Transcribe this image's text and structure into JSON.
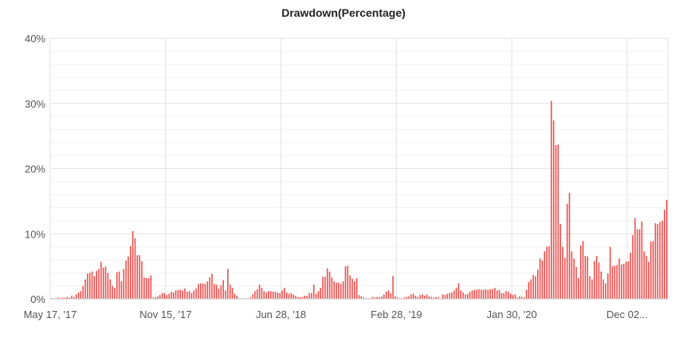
{
  "chart_data": {
    "type": "bar",
    "title": "Drawdown(Percentage)",
    "xlabel": "",
    "ylabel": "",
    "ylim": [
      0,
      40
    ],
    "y_ticks": [
      {
        "value": 0,
        "label": "0%"
      },
      {
        "value": 10,
        "label": "10%"
      },
      {
        "value": 20,
        "label": "20%"
      },
      {
        "value": 30,
        "label": "30%"
      },
      {
        "value": 40,
        "label": "40%"
      }
    ],
    "x_ticks": [
      {
        "index": 0,
        "label": "May 17, '17"
      },
      {
        "index": 51,
        "label": "Nov 15, '17"
      },
      {
        "index": 102,
        "label": "Jun 28, '18"
      },
      {
        "index": 153,
        "label": "Feb 28, '19"
      },
      {
        "index": 204,
        "label": "Jan 30, '20"
      },
      {
        "index": 255,
        "label": "Dec 02..."
      }
    ],
    "grid": true,
    "bar_color": "#ef4b4b",
    "values": [
      0.1,
      0.1,
      0.1,
      0.2,
      0.1,
      0.2,
      0.2,
      0.3,
      0.2,
      0.5,
      0.3,
      0.7,
      1.0,
      1.2,
      2.0,
      3.0,
      3.9,
      4.0,
      4.2,
      3.5,
      4.3,
      4.6,
      5.7,
      4.8,
      5.0,
      4.0,
      3.0,
      2.0,
      1.7,
      4.1,
      4.2,
      2.7,
      4.6,
      5.9,
      6.5,
      8.1,
      10.4,
      9.3,
      6.7,
      6.7,
      5.8,
      3.3,
      3.2,
      3.2,
      3.6,
      0.2,
      0.3,
      0.4,
      0.6,
      0.9,
      0.9,
      0.6,
      0.8,
      1.1,
      1.0,
      1.3,
      1.4,
      1.4,
      1.3,
      1.6,
      1.1,
      1.2,
      0.9,
      1.3,
      1.6,
      2.3,
      2.4,
      2.4,
      2.3,
      2.7,
      3.3,
      3.9,
      2.3,
      2.2,
      1.6,
      2.1,
      2.9,
      1.3,
      4.6,
      2.2,
      1.7,
      0.8,
      0.5,
      0.1,
      0.1,
      0.1,
      0.1,
      0.1,
      0.2,
      0.7,
      1.2,
      1.5,
      2.2,
      1.7,
      1.2,
      1.0,
      1.2,
      1.2,
      1.1,
      1.1,
      1.0,
      0.9,
      1.3,
      1.7,
      1.0,
      0.8,
      0.9,
      0.7,
      0.5,
      0.3,
      0.3,
      0.3,
      0.5,
      0.5,
      0.9,
      0.9,
      2.2,
      0.8,
      1.2,
      1.7,
      3.4,
      3.4,
      4.7,
      4.2,
      3.3,
      2.7,
      2.5,
      2.5,
      2.3,
      2.7,
      5.0,
      5.1,
      3.6,
      3.1,
      2.7,
      3.2,
      0.6,
      0.4,
      0.2,
      0.1,
      0.1,
      0.1,
      0.3,
      0.2,
      0.3,
      0.3,
      0.4,
      0.7,
      1.1,
      1.3,
      0.9,
      3.5,
      0.4,
      0.2,
      0.1,
      0.1,
      0.2,
      0.3,
      0.4,
      0.7,
      0.8,
      0.5,
      0.3,
      0.6,
      0.7,
      0.5,
      0.7,
      0.4,
      0.3,
      0.2,
      0.3,
      0.3,
      0.1,
      0.7,
      0.6,
      0.8,
      0.9,
      1.0,
      1.3,
      1.7,
      2.4,
      1.3,
      1.0,
      0.7,
      0.8,
      1.1,
      1.3,
      1.4,
      1.4,
      1.5,
      1.4,
      1.4,
      1.5,
      1.4,
      1.5,
      1.5,
      1.7,
      1.3,
      1.4,
      0.9,
      0.9,
      1.2,
      1.1,
      0.8,
      0.6,
      0.7,
      0.2,
      0.4,
      0.3,
      0.2,
      1.4,
      2.6,
      3.0,
      3.7,
      3.5,
      4.5,
      6.2,
      5.9,
      7.3,
      8.0,
      8.1,
      30.4,
      27.4,
      23.6,
      23.7,
      11.5,
      8.0,
      6.3,
      14.6,
      16.3,
      7.3,
      6.2,
      4.9,
      3.2,
      8.2,
      8.9,
      6.6,
      6.5,
      3.5,
      3.0,
      5.8,
      6.6,
      5.6,
      4.2,
      3.0,
      2.4,
      3.9,
      8.0,
      5.0,
      5.1,
      5.2,
      6.2,
      5.3,
      5.4,
      5.7,
      5.8,
      7.1,
      9.8,
      12.4,
      10.7,
      10.7,
      11.9,
      7.3,
      6.6,
      5.7,
      8.8,
      8.9,
      11.6,
      11.5,
      11.8,
      12.0,
      13.7,
      15.2
    ]
  }
}
